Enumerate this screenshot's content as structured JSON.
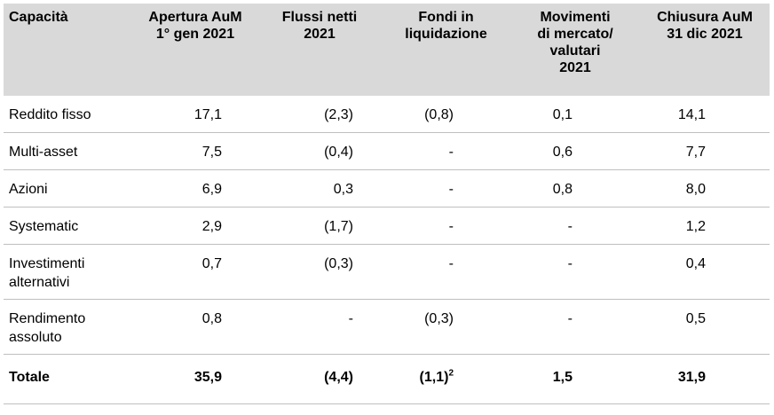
{
  "headers": [
    [
      "Capacità"
    ],
    [
      "Apertura AuM",
      "1° gen 2021"
    ],
    [
      "Flussi netti",
      "2021"
    ],
    [
      "Fondi in",
      "liquidazione"
    ],
    [
      "Movimenti",
      "di mercato/",
      "valutari",
      "2021"
    ],
    [
      "Chiusura AuM",
      "31 dic 2021"
    ]
  ],
  "rows": [
    {
      "label": [
        "Reddito fisso"
      ],
      "values": [
        "17,1",
        "(2,3)",
        "(0,8)",
        "0,1",
        "14,1"
      ]
    },
    {
      "label": [
        "Multi-asset"
      ],
      "values": [
        "7,5",
        "(0,4)",
        "-",
        "0,6",
        "7,7"
      ]
    },
    {
      "label": [
        "Azioni"
      ],
      "values": [
        "6,9",
        "0,3",
        "-",
        "0,8",
        "8,0"
      ]
    },
    {
      "label": [
        "Systematic"
      ],
      "values": [
        "2,9",
        "(1,7)",
        "-",
        "-",
        "1,2"
      ]
    },
    {
      "label": [
        "Investimenti",
        "alternativi"
      ],
      "values": [
        "0,7",
        "(0,3)",
        "-",
        "-",
        "0,4"
      ]
    },
    {
      "label": [
        "Rendimento",
        "assoluto"
      ],
      "values": [
        "0,8",
        "-",
        "(0,3)",
        "-",
        "0,5"
      ]
    }
  ],
  "total": {
    "label": "Totale",
    "values": [
      "35,9",
      "(4,4)",
      "(1,1)",
      "1,5",
      "31,9"
    ],
    "footnote": "2"
  }
}
